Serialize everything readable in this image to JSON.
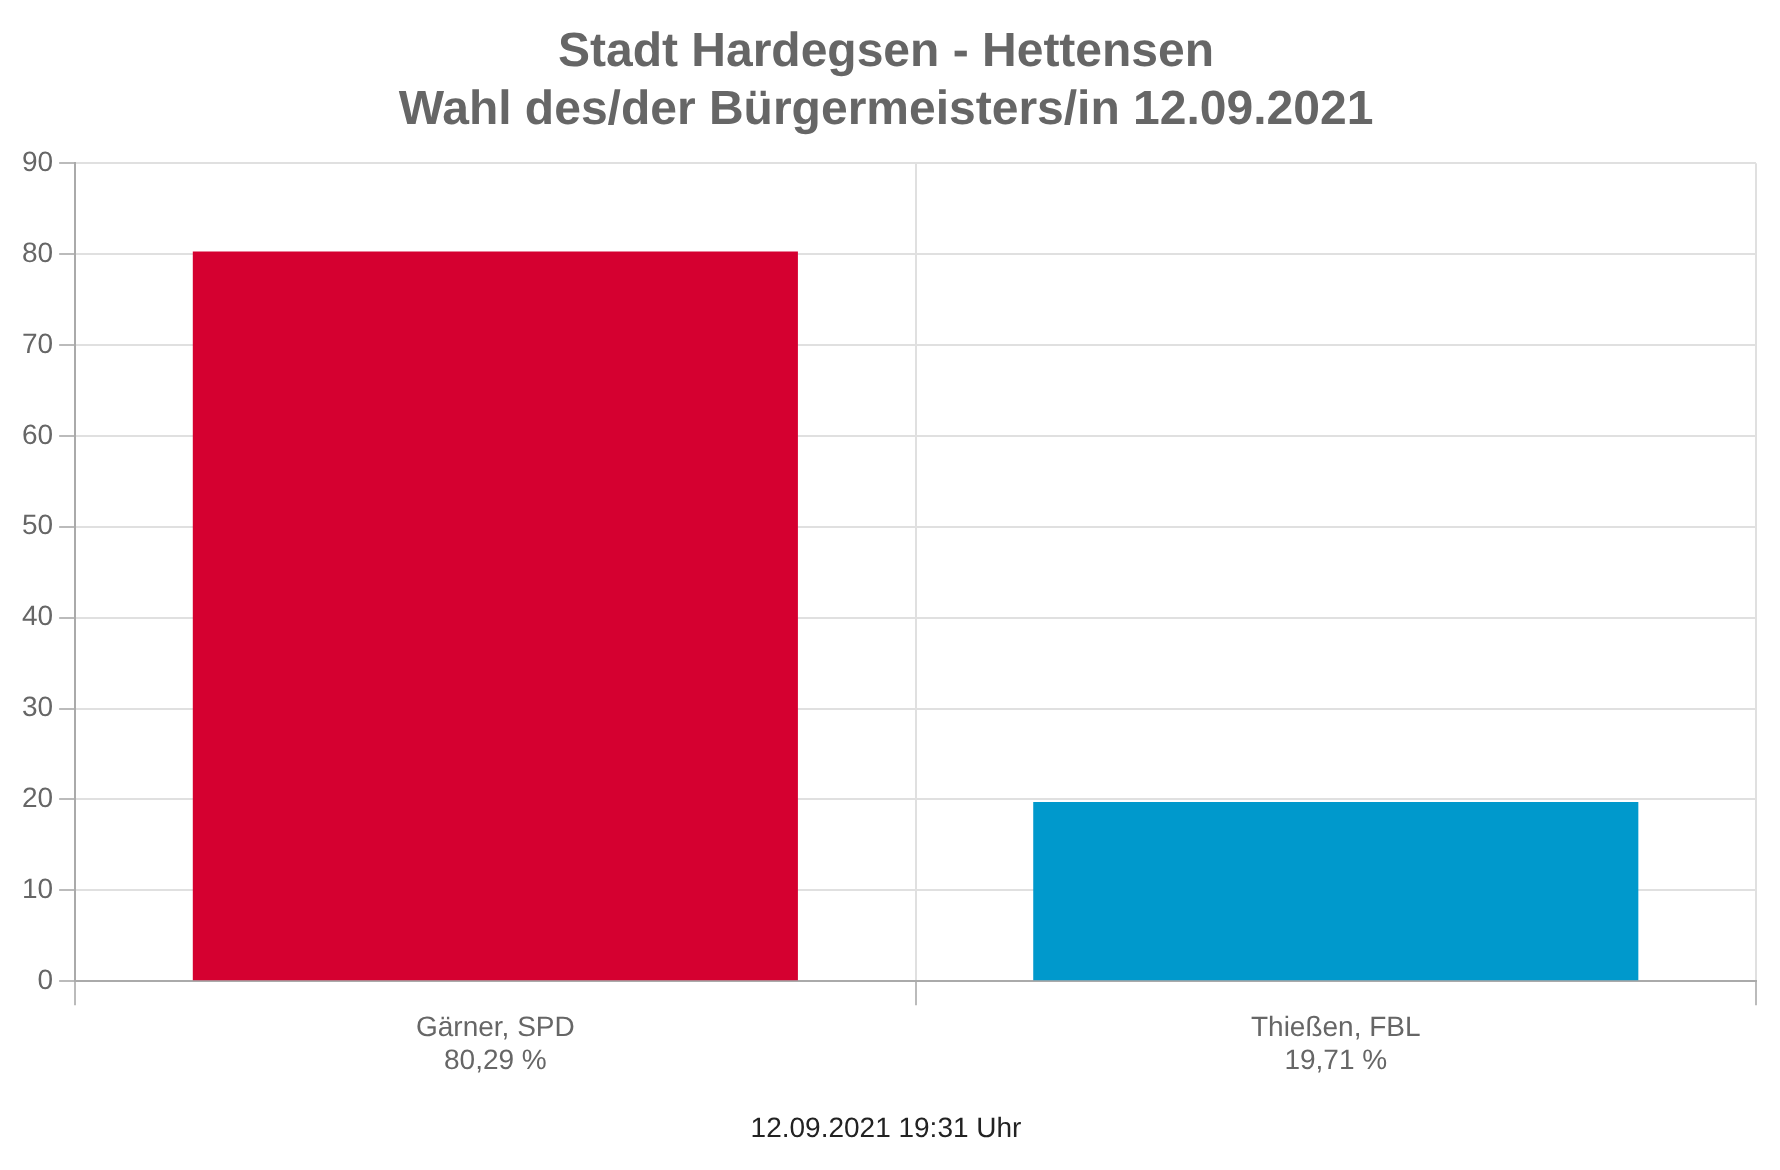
{
  "chart_data": {
    "type": "bar",
    "title": [
      "Stadt Hardegsen - Hettensen",
      "Wahl des/der Bürgermeisters/in 12.09.2021"
    ],
    "categories": [
      "Gärner, SPD",
      "Thießen, FBL"
    ],
    "values": [
      80.29,
      19.71
    ],
    "colors": [
      "#d50030",
      "#0099cc"
    ],
    "value_labels": [
      "80,29 %",
      "19,71 %"
    ],
    "ylim": [
      0,
      90
    ],
    "yticks": [
      0,
      10,
      20,
      30,
      40,
      50,
      60,
      70,
      80,
      90
    ],
    "grid": true,
    "legend": false,
    "annotations": [
      "12.09.2021 19:31 Uhr"
    ]
  }
}
